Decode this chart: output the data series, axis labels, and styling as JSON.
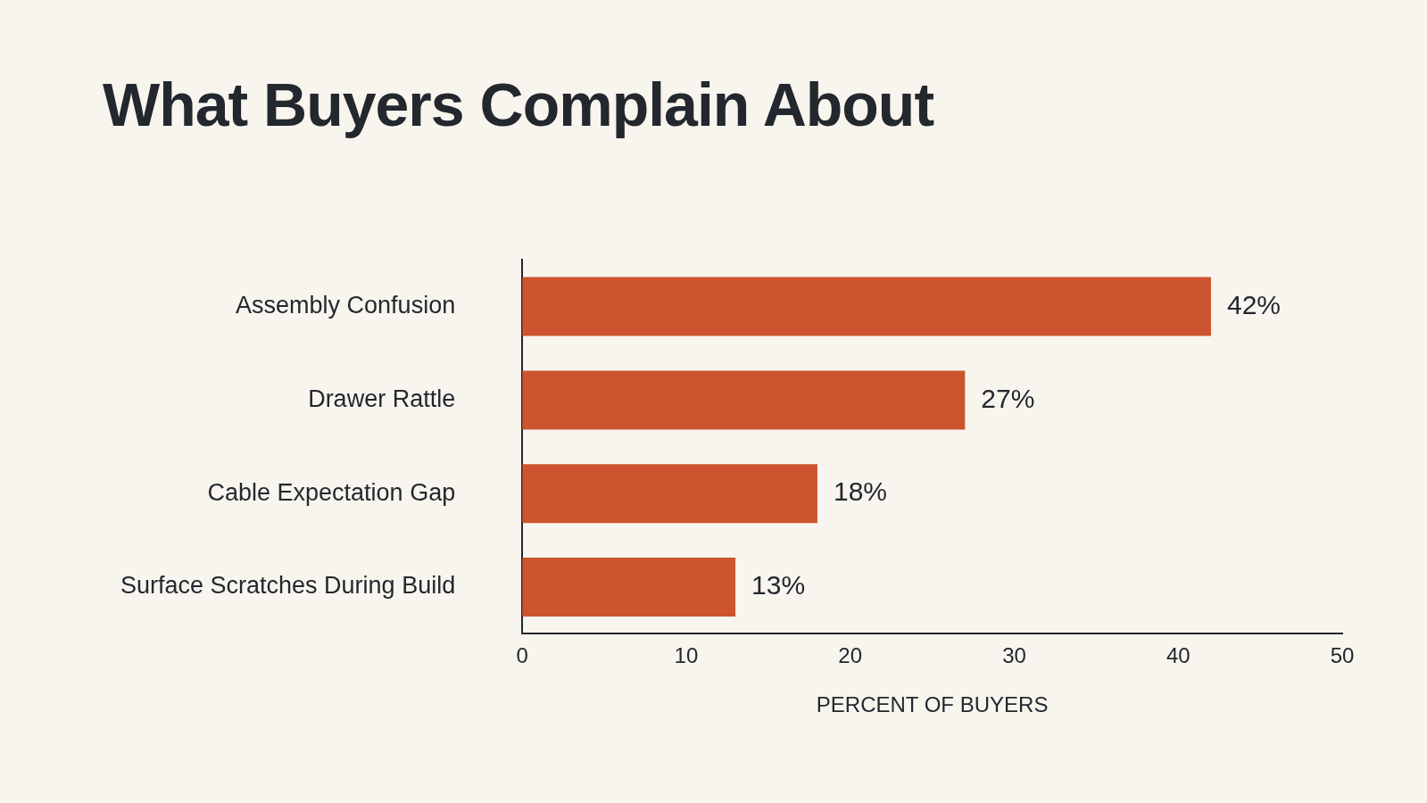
{
  "chart_data": {
    "type": "bar",
    "orientation": "horizontal",
    "title": "What Buyers Complain About",
    "xlabel": "PERCENT OF BUYERS",
    "categories": [
      "Assembly Confusion",
      "Drawer Rattle",
      "Cable Expectation Gap",
      "Surface Scratches During Build"
    ],
    "values": [
      42,
      27,
      18,
      13
    ],
    "value_labels": [
      "42%",
      "27%",
      "18%",
      "13%"
    ],
    "color": "#cc552f",
    "xlim": [
      0,
      50
    ],
    "xticks": [
      0,
      10,
      20,
      30,
      40,
      50
    ],
    "legend": false,
    "grid": false
  }
}
